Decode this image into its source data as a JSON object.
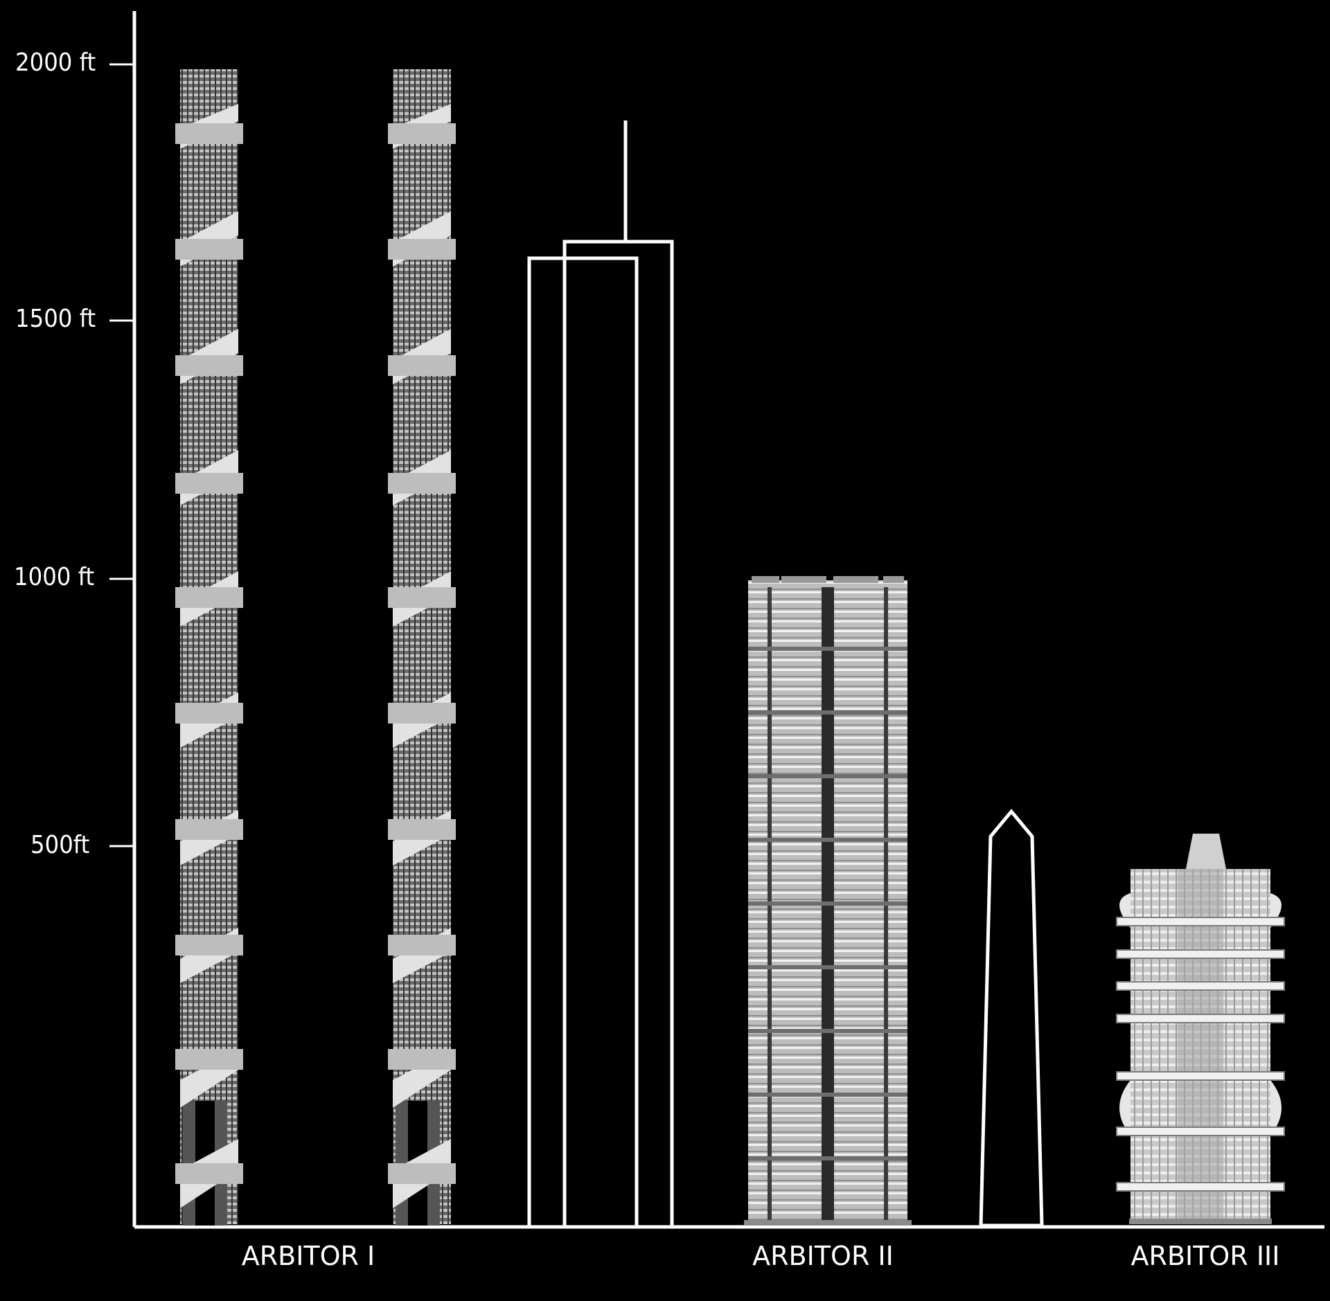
{
  "axis": {
    "unit": "ft",
    "ticks": [
      {
        "value": 2000,
        "label": "2000 ft"
      },
      {
        "value": 1500,
        "label": "1500 ft"
      },
      {
        "value": 1000,
        "label": "1000 ft"
      },
      {
        "value": 500,
        "label": "500ft"
      }
    ]
  },
  "towers": [
    {
      "id": "arbitor-1",
      "label": "ARBITOR I"
    },
    {
      "id": "arbitor-2",
      "label": "ARBITOR II"
    },
    {
      "id": "arbitor-3",
      "label": "ARBITOR III"
    }
  ],
  "colors": {
    "background": "#000000",
    "line": "#ffffff",
    "building": "#d9d9d9"
  }
}
